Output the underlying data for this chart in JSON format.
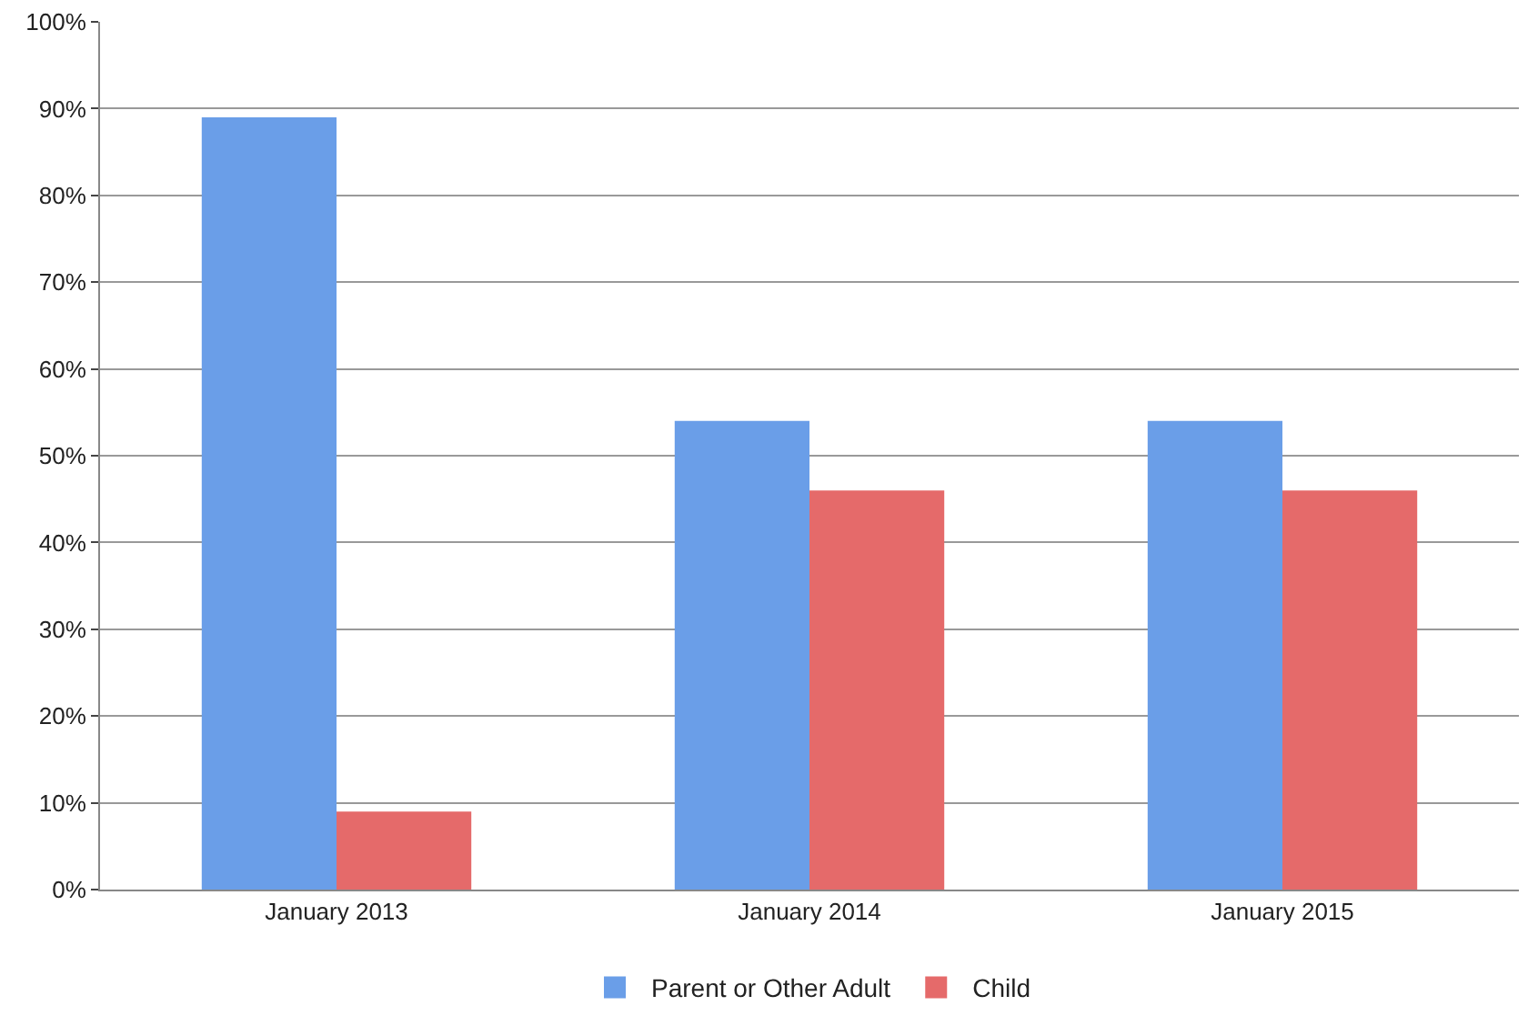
{
  "chart_data": {
    "type": "bar",
    "categories": [
      "January 2013",
      "January 2014",
      "January 2015"
    ],
    "series": [
      {
        "name": "Parent or Other Adult",
        "color": "#6a9ee8",
        "values": [
          89,
          54,
          54
        ]
      },
      {
        "name": "Child",
        "color": "#e56a6a",
        "values": [
          9,
          46,
          46
        ]
      }
    ],
    "ylim": [
      0,
      100
    ],
    "yticks": [
      {
        "value": 0,
        "label": "0%"
      },
      {
        "value": 10,
        "label": "10%"
      },
      {
        "value": 20,
        "label": "20%"
      },
      {
        "value": 30,
        "label": "30%"
      },
      {
        "value": 40,
        "label": "40%"
      },
      {
        "value": 50,
        "label": "50%"
      },
      {
        "value": 60,
        "label": "60%"
      },
      {
        "value": 70,
        "label": "70%"
      },
      {
        "value": 80,
        "label": "80%"
      },
      {
        "value": 90,
        "label": "90%"
      },
      {
        "value": 100,
        "label": "100%"
      }
    ],
    "grid": "y",
    "legend": "bottom"
  }
}
